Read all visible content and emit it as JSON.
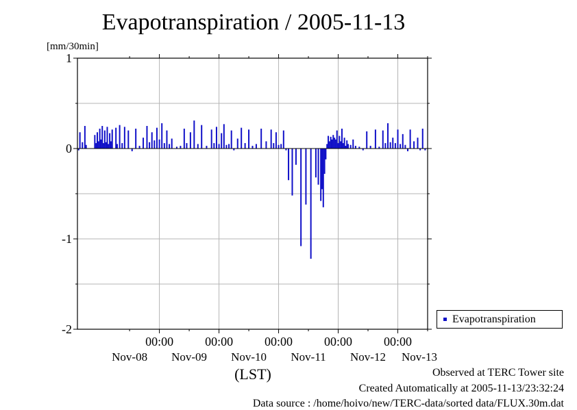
{
  "title": "Evapotranspiration / 2005-11-13",
  "legend": {
    "label": "Evapotranspiration",
    "color": "#1010c8"
  },
  "footer": {
    "observed": "Observed at TERC Tower site",
    "created": "Created Automatically at 2005-11-13/23:32:24",
    "source": "Data source : /home/hoivo/new/TERC-data/sorted  data/FLUX.30m.dat"
  },
  "chart_data": {
    "type": "bar",
    "title": "Evapotranspiration / 2005-11-13",
    "ylabel": "[mm/30min]",
    "xlabel": "(LST)",
    "ylim": [
      -2,
      1
    ],
    "yticks": [
      -2,
      -1,
      0,
      1
    ],
    "ytick_labels": [
      "-2",
      "-1",
      "0",
      "1"
    ],
    "xlim": [
      "2005-11-07T15:00",
      "2005-11-13T12:00"
    ],
    "xticks": [
      {
        "at": "2005-11-09T00:00",
        "time": "00:00"
      },
      {
        "at": "2005-11-10T00:00",
        "time": "00:00"
      },
      {
        "at": "2005-11-11T00:00",
        "time": "00:00"
      },
      {
        "at": "2005-11-12T00:00",
        "time": "00:00"
      },
      {
        "at": "2005-11-13T00:00",
        "time": "00:00"
      }
    ],
    "xday_labels": [
      {
        "at": "2005-11-08T12:00",
        "label": "Nov-08"
      },
      {
        "at": "2005-11-09T12:00",
        "label": "Nov-09"
      },
      {
        "at": "2005-11-10T12:00",
        "label": "Nov-10"
      },
      {
        "at": "2005-11-11T12:00",
        "label": "Nov-11"
      },
      {
        "at": "2005-11-12T12:00",
        "label": "Nov-12"
      },
      {
        "at": "2005-11-13T12:00",
        "label": "Nov-13"
      }
    ],
    "grid": true,
    "legend_position": "right-bottom",
    "bar_color": "#1010c8",
    "series": [
      {
        "name": "Evapotranspiration",
        "x": [
          "2005-11-07T15:30",
          "2005-11-07T16:00",
          "2005-11-07T17:00",
          "2005-11-07T18:00",
          "2005-11-07T18:30",
          "2005-11-07T22:00",
          "2005-11-07T22:30",
          "2005-11-07T23:00",
          "2005-11-07T23:30",
          "2005-11-08T00:00",
          "2005-11-08T00:30",
          "2005-11-08T01:00",
          "2005-11-08T01:30",
          "2005-11-08T02:00",
          "2005-11-08T02:30",
          "2005-11-08T03:00",
          "2005-11-08T03:30",
          "2005-11-08T04:00",
          "2005-11-08T04:30",
          "2005-11-08T05:00",
          "2005-11-08T06:30",
          "2005-11-08T07:00",
          "2005-11-08T08:00",
          "2005-11-08T09:00",
          "2005-11-08T10:00",
          "2005-11-08T11:30",
          "2005-11-08T13:00",
          "2005-11-08T14:30",
          "2005-11-08T16:00",
          "2005-11-08T17:30",
          "2005-11-08T19:00",
          "2005-11-08T20:00",
          "2005-11-08T21:00",
          "2005-11-08T22:00",
          "2005-11-08T23:00",
          "2005-11-09T00:00",
          "2005-11-09T01:00",
          "2005-11-09T02:00",
          "2005-11-09T03:00",
          "2005-11-09T04:00",
          "2005-11-09T05:00",
          "2005-11-09T07:00",
          "2005-11-09T08:30",
          "2005-11-09T10:00",
          "2005-11-09T11:00",
          "2005-11-09T12:30",
          "2005-11-09T14:00",
          "2005-11-09T15:30",
          "2005-11-09T17:00",
          "2005-11-09T19:00",
          "2005-11-09T21:00",
          "2005-11-09T22:00",
          "2005-11-09T23:00",
          "2005-11-10T00:00",
          "2005-11-10T01:00",
          "2005-11-10T02:00",
          "2005-11-10T03:00",
          "2005-11-10T04:00",
          "2005-11-10T05:00",
          "2005-11-10T06:00",
          "2005-11-10T07:30",
          "2005-11-10T09:00",
          "2005-11-10T10:30",
          "2005-11-10T12:00",
          "2005-11-10T13:30",
          "2005-11-10T15:00",
          "2005-11-10T17:00",
          "2005-11-10T19:00",
          "2005-11-10T21:00",
          "2005-11-10T22:00",
          "2005-11-10T23:00",
          "2005-11-11T00:00",
          "2005-11-11T01:00",
          "2005-11-11T02:00",
          "2005-11-11T03:00",
          "2005-11-11T04:00",
          "2005-11-11T05:30",
          "2005-11-11T07:00",
          "2005-11-11T09:00",
          "2005-11-11T11:00",
          "2005-11-11T13:00",
          "2005-11-11T15:00",
          "2005-11-11T16:00",
          "2005-11-11T17:00",
          "2005-11-11T17:30",
          "2005-11-11T18:00",
          "2005-11-11T18:30",
          "2005-11-11T19:00",
          "2005-11-11T19:30",
          "2005-11-11T20:00",
          "2005-11-11T20:30",
          "2005-11-11T21:00",
          "2005-11-11T21:30",
          "2005-11-11T22:00",
          "2005-11-11T22:30",
          "2005-11-11T23:00",
          "2005-11-11T23:30",
          "2005-11-12T00:00",
          "2005-11-12T00:30",
          "2005-11-12T01:00",
          "2005-11-12T01:30",
          "2005-11-12T02:00",
          "2005-11-12T02:30",
          "2005-11-12T03:00",
          "2005-11-12T03:30",
          "2005-11-12T04:00",
          "2005-11-12T05:00",
          "2005-11-12T06:00",
          "2005-11-12T07:00",
          "2005-11-12T08:30",
          "2005-11-12T10:00",
          "2005-11-12T11:30",
          "2005-11-12T13:00",
          "2005-11-12T15:00",
          "2005-11-12T16:30",
          "2005-11-12T18:00",
          "2005-11-12T19:00",
          "2005-11-12T20:00",
          "2005-11-12T21:00",
          "2005-11-12T22:00",
          "2005-11-12T23:00",
          "2005-11-13T00:00",
          "2005-11-13T01:00",
          "2005-11-13T02:00",
          "2005-11-13T03:00",
          "2005-11-13T04:00",
          "2005-11-13T05:00",
          "2005-11-13T06:30",
          "2005-11-13T08:00",
          "2005-11-13T09:00",
          "2005-11-13T10:00",
          "2005-11-13T11:00"
        ],
        "values": [
          -0.02,
          0.18,
          0.07,
          0.25,
          0.04,
          0.15,
          0.06,
          0.18,
          0.08,
          0.22,
          0.1,
          0.25,
          0.06,
          0.2,
          0.07,
          0.24,
          0.05,
          0.17,
          0.08,
          0.21,
          0.23,
          0.05,
          0.26,
          0.06,
          0.24,
          0.2,
          -0.03,
          0.22,
          0.03,
          0.12,
          0.25,
          0.07,
          0.18,
          0.09,
          0.23,
          0.1,
          0.28,
          0.06,
          0.2,
          0.05,
          0.11,
          0.02,
          0.03,
          0.22,
          0.06,
          0.18,
          0.31,
          0.05,
          0.26,
          0.03,
          0.21,
          0.06,
          0.24,
          0.05,
          0.17,
          0.27,
          0.04,
          0.05,
          0.2,
          -0.02,
          0.11,
          0.23,
          0.06,
          0.21,
          0.03,
          0.05,
          0.22,
          0.08,
          0.21,
          0.06,
          0.18,
          0.04,
          0.05,
          0.2,
          -0.02,
          -0.35,
          -0.52,
          -0.18,
          -1.08,
          -0.62,
          -1.22,
          -0.32,
          -0.4,
          -0.58,
          -0.45,
          -0.65,
          -0.28,
          -0.12,
          0.05,
          0.14,
          0.08,
          0.13,
          0.1,
          0.15,
          0.12,
          0.1,
          0.2,
          0.06,
          0.14,
          0.08,
          0.22,
          0.06,
          0.12,
          0.03,
          0.09,
          0.05,
          0.04,
          0.1,
          0.03,
          0.02,
          -0.02,
          0.19,
          0.03,
          0.21,
          0.02,
          0.2,
          0.06,
          0.28,
          0.07,
          0.12,
          0.06,
          0.21,
          0.05,
          0.16,
          0.04,
          -0.03,
          0.21,
          0.08,
          0.12,
          -0.02,
          0.22,
          -0.02
        ]
      }
    ]
  }
}
